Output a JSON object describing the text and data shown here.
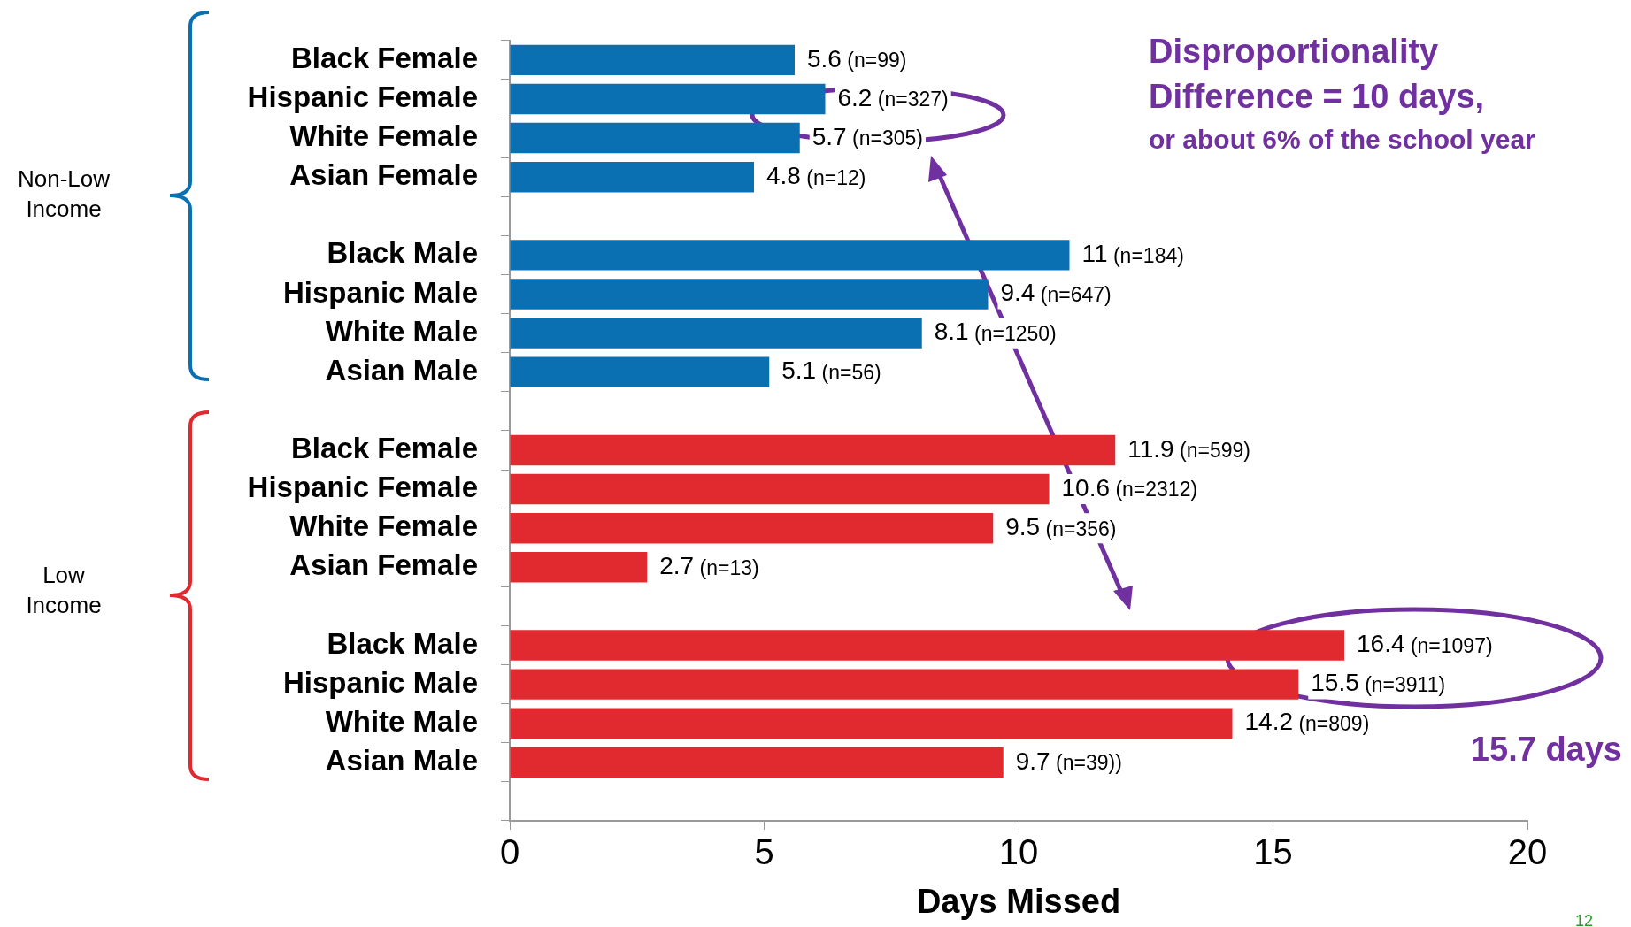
{
  "chart_data": {
    "type": "bar",
    "orientation": "horizontal",
    "xlabel": "Days Missed",
    "categories": [
      "Black Female",
      "Hispanic Female",
      "White Female",
      "Asian Female",
      null,
      "Black Male",
      "Hispanic Male",
      "White Male",
      "Asian Male",
      null,
      "Black Female",
      "Hispanic Female",
      "White Female",
      "Asian Female",
      null,
      "Black Male",
      "Hispanic Male",
      "White Male",
      "Asian Male",
      null
    ],
    "values": [
      5.6,
      6.2,
      5.7,
      4.8,
      null,
      11,
      9.4,
      8.1,
      5.1,
      null,
      11.9,
      10.6,
      9.5,
      2.7,
      null,
      16.4,
      15.5,
      14.2,
      9.7,
      null
    ],
    "colors": [
      "#0a70b2",
      "#0a70b2",
      "#0a70b2",
      "#0a70b2",
      "#0a70b2",
      "#0a70b2",
      "#0a70b2",
      "#0a70b2",
      "#0a70b2",
      "#0a70b2",
      "#e02a30",
      "#e02a30",
      "#e02a30",
      "#e02a30",
      "#e02a30",
      "#e02a30",
      "#e02a30",
      "#e02a30",
      "#e02a30",
      "#e02a30"
    ],
    "value_labels": [
      "5.6 (n=99)",
      "6.2 (n=327)",
      "5.7 (n=305)",
      "4.8 (n=12)",
      null,
      "11 (n=184)",
      "9.4 (n=647)",
      "8.1 (n=1250)",
      "5.1 (n=56)",
      null,
      "11.9 (n=599)",
      "10.6 (n=2312)",
      "9.5 (n=356)",
      "2.7 (n=13)",
      null,
      "16.4 (n=1097)",
      "15.5 (n=3911)",
      "14.2 (n=809)",
      "9.7 (n=39))",
      null
    ],
    "xlim": [
      0,
      20
    ],
    "xticks": [
      0,
      5,
      10,
      15,
      20
    ],
    "grid": false,
    "legend": false,
    "annotations": [
      "Non-Low Income",
      "Low Income",
      "Disproportionality",
      "Difference = 10 days,",
      "or about 6% of the school year",
      "15.7 days",
      "12"
    ]
  }
}
